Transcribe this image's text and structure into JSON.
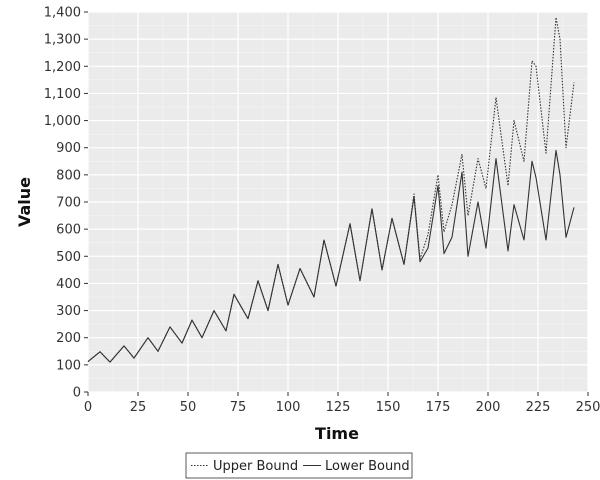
{
  "chart_data": {
    "type": "line",
    "title": "",
    "xlabel": "Time",
    "ylabel": "Value",
    "xlim": [
      0,
      250
    ],
    "ylim": [
      0,
      1400
    ],
    "x_ticks": [
      0,
      25,
      50,
      75,
      100,
      125,
      150,
      175,
      200,
      225,
      250
    ],
    "x_tick_labels": [
      "0",
      "25",
      "50",
      "75",
      "100",
      "125",
      "150",
      "175",
      "200",
      "225",
      "250"
    ],
    "y_ticks": [
      0,
      100,
      200,
      300,
      400,
      500,
      600,
      700,
      800,
      900,
      1000,
      1100,
      1200,
      1300,
      1400
    ],
    "y_tick_labels": [
      "0",
      "100",
      "200",
      "300",
      "400",
      "500",
      "600",
      "700",
      "800",
      "900",
      "1,000",
      "1,100",
      "1,200",
      "1,300",
      "1,400"
    ],
    "grid": true,
    "legend_position": "bottom",
    "background_color": "#ebebeb",
    "grid_color": "#ffffff",
    "series": [
      {
        "name": "Upper Bound",
        "line_style": "dotted",
        "color": "#333333",
        "x": [
          0,
          6,
          11,
          18,
          23,
          30,
          35,
          41,
          47,
          52,
          57,
          63,
          69,
          73,
          80,
          85,
          90,
          95,
          100,
          106,
          113,
          118,
          124,
          131,
          136,
          142,
          147,
          152,
          158,
          163,
          166,
          170,
          175,
          178,
          182,
          187,
          190,
          195,
          199,
          204,
          210,
          213,
          218,
          222,
          224,
          229,
          234,
          236,
          239,
          243
        ],
        "y": [
          112,
          148,
          110,
          170,
          125,
          200,
          150,
          240,
          180,
          265,
          200,
          300,
          225,
          360,
          270,
          410,
          300,
          470,
          320,
          455,
          350,
          560,
          390,
          620,
          410,
          675,
          450,
          640,
          470,
          730,
          490,
          580,
          800,
          590,
          690,
          875,
          650,
          860,
          750,
          1085,
          760,
          1000,
          850,
          1220,
          1200,
          880,
          1380,
          1300,
          900,
          1140
        ]
      },
      {
        "name": "Lower Bound",
        "line_style": "solid",
        "color": "#333333",
        "x": [
          0,
          6,
          11,
          18,
          23,
          30,
          35,
          41,
          47,
          52,
          57,
          63,
          69,
          73,
          80,
          85,
          90,
          95,
          100,
          106,
          113,
          118,
          124,
          131,
          136,
          142,
          147,
          152,
          158,
          163,
          166,
          170,
          175,
          178,
          182,
          187,
          190,
          195,
          199,
          204,
          210,
          213,
          218,
          222,
          224,
          229,
          234,
          236,
          239,
          243
        ],
        "y": [
          112,
          148,
          110,
          170,
          125,
          200,
          150,
          240,
          180,
          265,
          200,
          300,
          225,
          360,
          270,
          410,
          300,
          470,
          320,
          455,
          350,
          560,
          390,
          620,
          410,
          675,
          450,
          640,
          470,
          720,
          480,
          530,
          760,
          510,
          570,
          810,
          500,
          700,
          530,
          860,
          520,
          690,
          560,
          850,
          790,
          560,
          890,
          800,
          570,
          680
        ]
      }
    ]
  }
}
